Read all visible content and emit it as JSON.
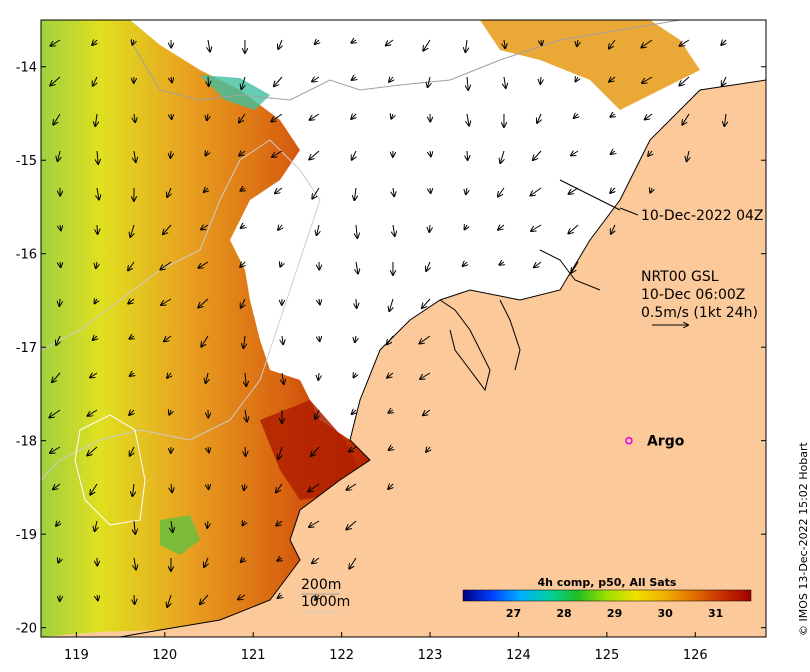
{
  "map": {
    "x_ticks": [
      "119",
      "120",
      "121",
      "122",
      "123",
      "124",
      "125",
      "126"
    ],
    "y_ticks": [
      "-14",
      "-15",
      "-16",
      "-17",
      "-18",
      "-19",
      "-20"
    ],
    "x_range": [
      118.6,
      126.8
    ],
    "y_range": [
      -20.1,
      -13.5
    ],
    "colors": {
      "land": "#fcc99a",
      "no_data": "#ffffff",
      "coast": "#000000",
      "isobath": "#a0a0a0",
      "argo_marker": "#e000e0"
    },
    "timestamp_label": "10-Dec-2022 04Z",
    "current_info": {
      "line1": "NRT00 GSL",
      "line2": "10-Dec 06:00Z",
      "line3": "0.5m/s (1kt 24h)"
    },
    "argo": {
      "label": "Argo",
      "lon": 125.25,
      "lat": -18.0
    },
    "isobath_labels": {
      "shallow": "200m",
      "deep": "1000m"
    },
    "colorbar": {
      "title": "4h comp, p50, All Sats",
      "ticks": [
        "27",
        "28",
        "29",
        "30",
        "31"
      ],
      "tick_values": [
        27,
        28,
        29,
        30,
        31
      ],
      "range": [
        26.0,
        31.7
      ],
      "colors": [
        "#000080",
        "#0040ff",
        "#00b0ff",
        "#00d0a0",
        "#20c020",
        "#a0e000",
        "#f0e000",
        "#f0b000",
        "#e07000",
        "#c83000",
        "#a00000"
      ]
    },
    "credit": "© IMOS 13-Dec-2022 15:02 Hobart"
  }
}
